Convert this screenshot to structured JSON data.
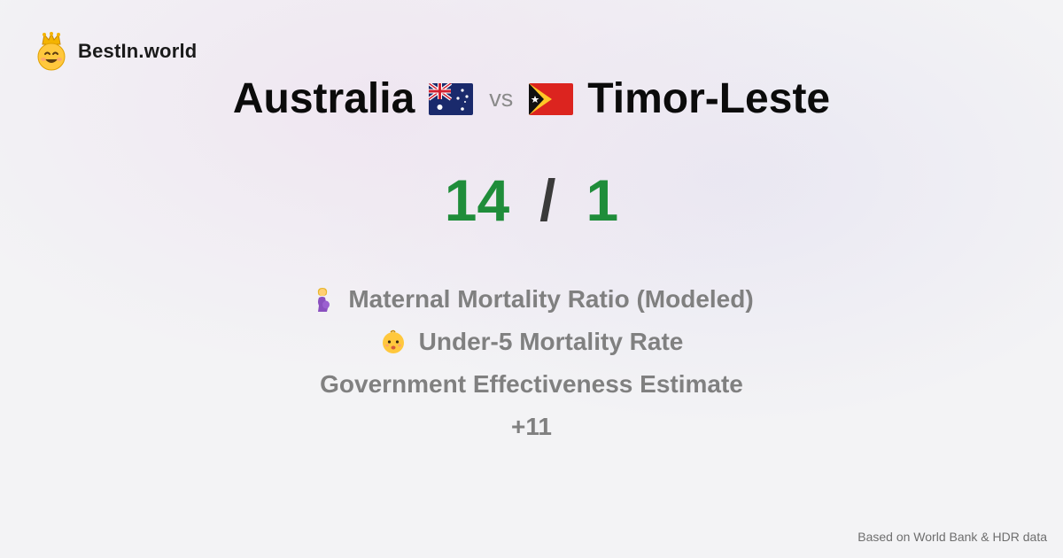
{
  "brand": {
    "name": "BestIn.world",
    "icon": "crowned-smiley-icon"
  },
  "comparison": {
    "left_country": "Australia",
    "left_flag": "australia-flag-icon",
    "vs_label": "vs",
    "right_country": "Timor-Leste",
    "right_flag": "timor-leste-flag-icon"
  },
  "score": {
    "left": "14",
    "separator": "/",
    "right": "1"
  },
  "metrics": [
    {
      "label": "Maternal Mortality Ratio (Modeled)",
      "icon": "pregnant-woman-icon"
    },
    {
      "label": "Under-5 Mortality Rate",
      "icon": "baby-icon"
    },
    {
      "label": "Government Effectiveness Estimate",
      "icon": ""
    },
    {
      "label": "+11",
      "icon": ""
    }
  ],
  "footer": {
    "source": "Based on World Bank & HDR data"
  },
  "colors": {
    "score_green": "#1f8d3a",
    "metric_gray": "#808080"
  }
}
